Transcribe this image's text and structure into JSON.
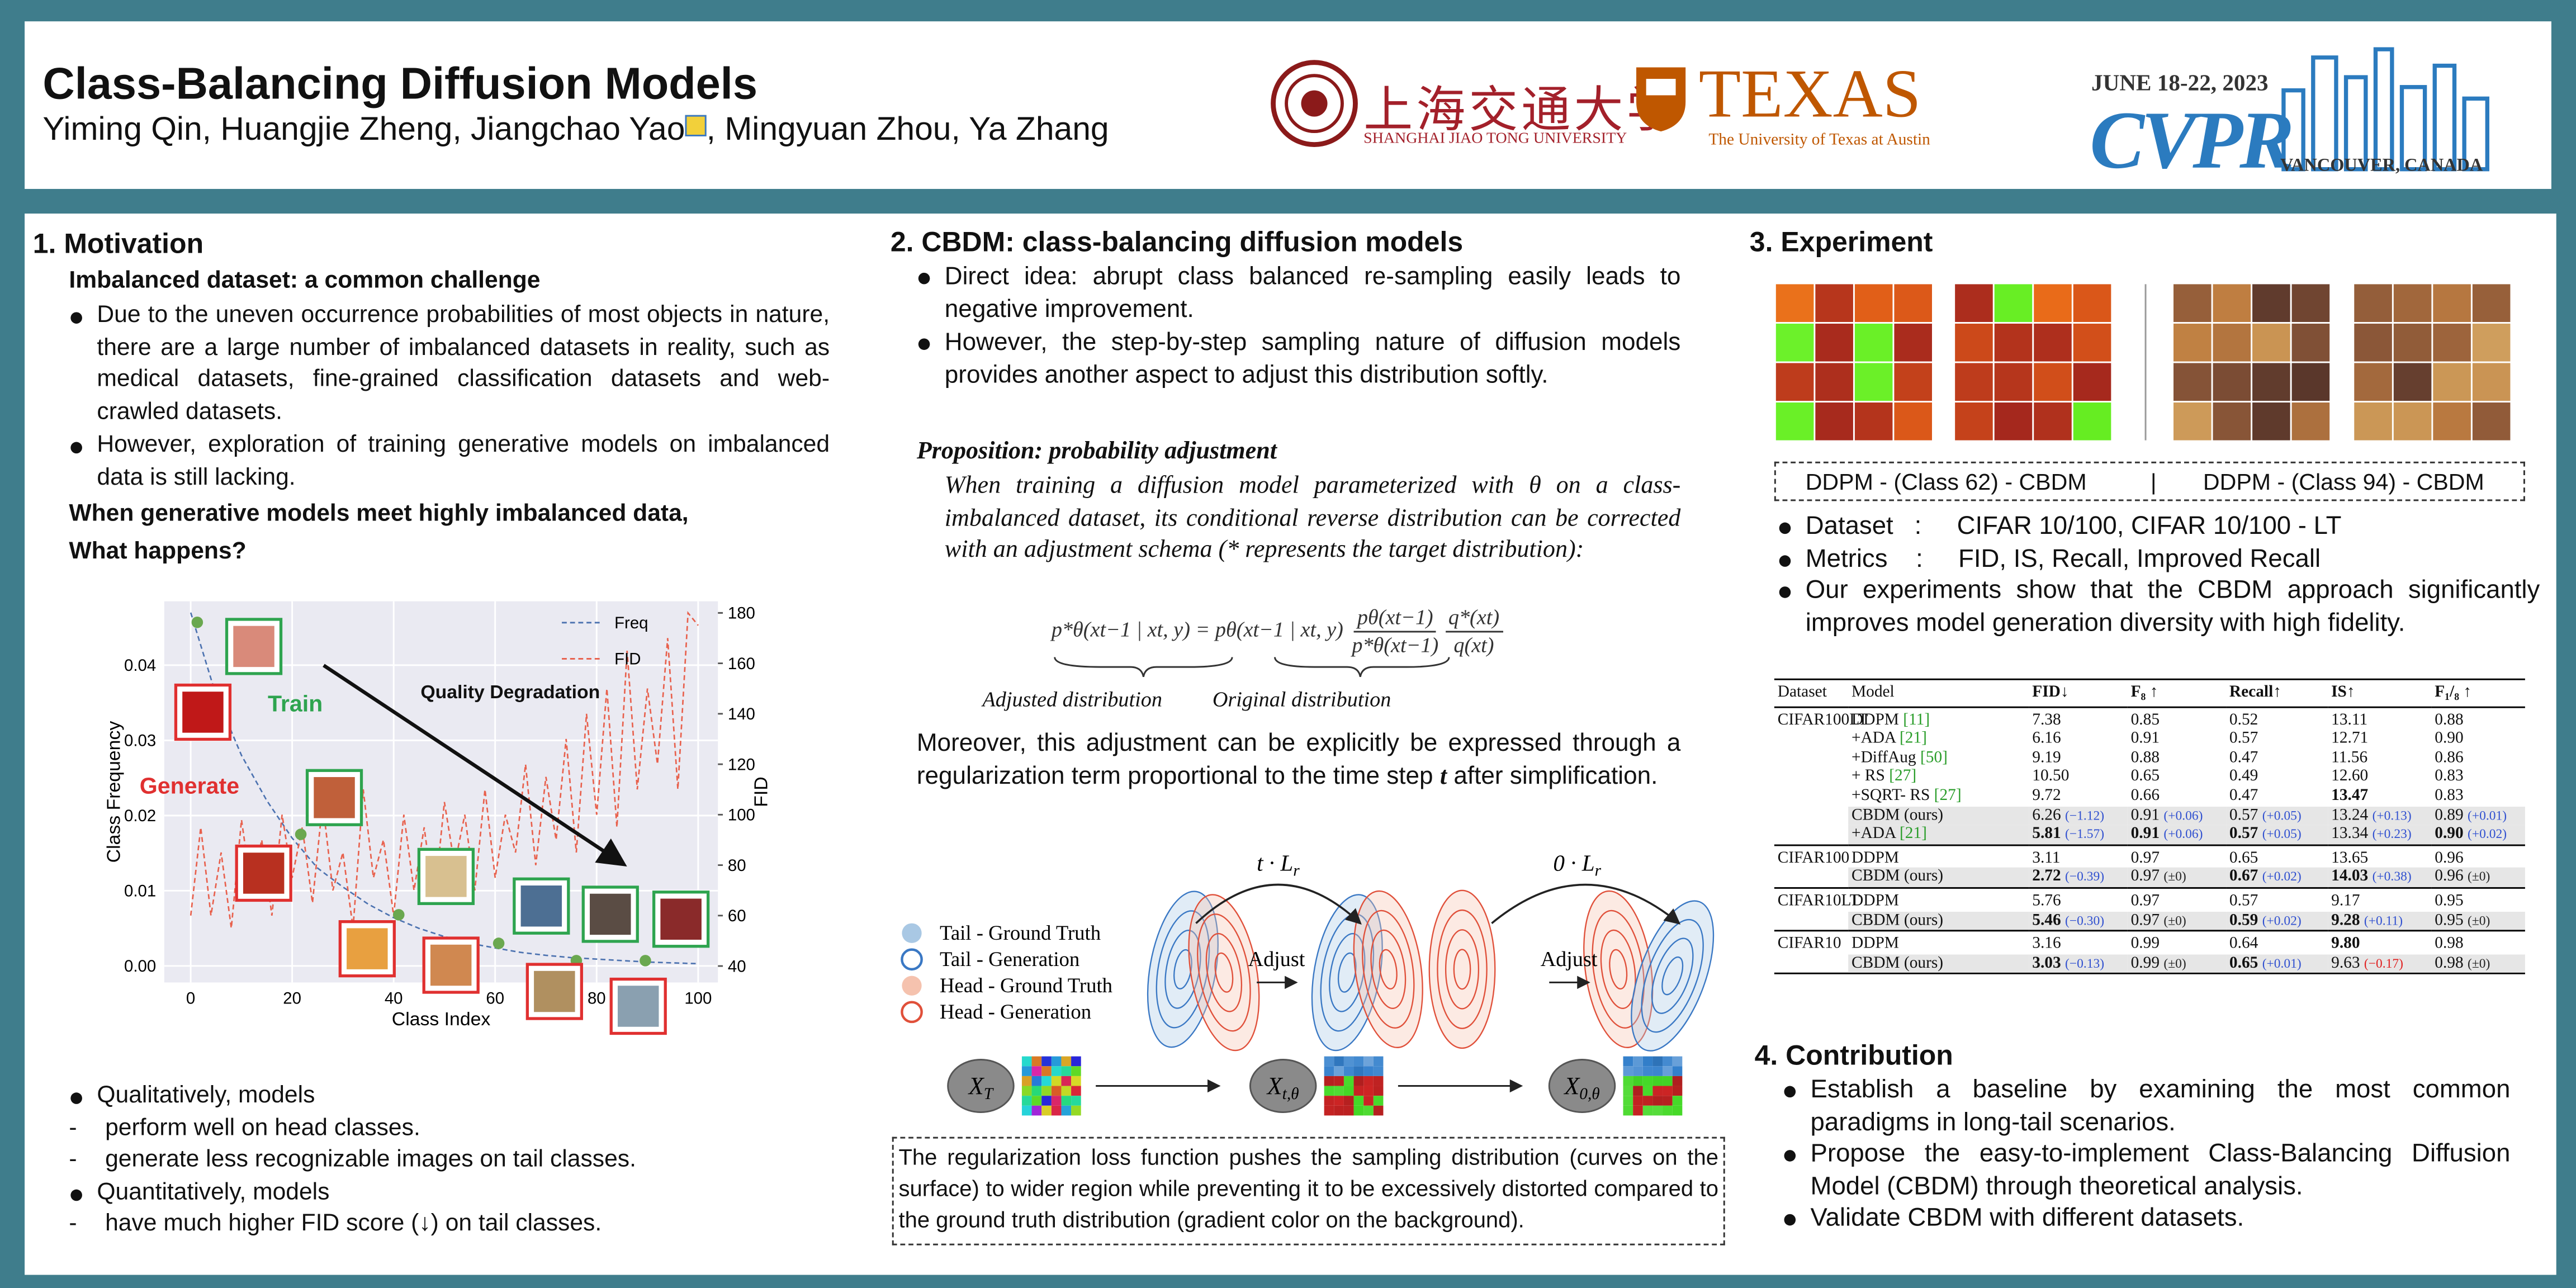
{
  "header": {
    "title": "Class-Balancing Diffusion Models",
    "authors_before_icon": "Yiming Qin, Huangjie Zheng, Jiangchao Yao",
    "authors_after_icon": ", Mingyuan Zhou, Ya Zhang",
    "logos": {
      "sjtu_cn": "上海交通大学",
      "sjtu_en": "SHANGHAI JIAO TONG UNIVERSITY",
      "texas": "TEXAS",
      "texas_sub": "The University of Texas at Austin",
      "cvpr_date": "JUNE 18-22, 2023",
      "cvpr": "CVPR",
      "cvpr_place": "VANCOUVER, CANADA"
    }
  },
  "motivation": {
    "heading": "1.  Motivation",
    "subheading": "Imbalanced dataset: a common challenge",
    "bullets": [
      "Due to the uneven occurrence probabilities of most objects in nature, there are a large number of imbalanced datasets in reality, such as medical datasets,  fine-grained classification datasets and web-crawled datasets.",
      "However, exploration of training generative models on imbalanced data is still  lacking."
    ],
    "question": [
      "When generative models meet  highly imbalanced data,",
      "What happens?"
    ],
    "results": [
      {
        "text": "Qualitatively, models",
        "items": [
          "perform well on head classes.",
          "generate less recognizable images on tail classes."
        ]
      },
      {
        "text": "Quantitatively, models",
        "items": [
          "have much higher FID score (↓) on tail classes."
        ]
      }
    ]
  },
  "chart_data": {
    "type": "line",
    "xlabel": "Class Index",
    "ylabel": "Class Frequency",
    "y2label": "FID",
    "xlim": [
      -5.2,
      103.9
    ],
    "xticks": [
      0,
      20,
      40,
      60,
      80,
      100
    ],
    "ylim": [
      -0.0022,
      0.0485
    ],
    "yticks": [
      {
        "value": 0,
        "label": "0.00"
      },
      {
        "value": 0.01,
        "label": "0.01"
      },
      {
        "value": 0.02,
        "label": "0.02"
      },
      {
        "value": 0.03,
        "label": "0.03"
      },
      {
        "value": 0.04,
        "label": "0.04"
      }
    ],
    "y2lim": [
      33.5,
      184.6
    ],
    "y2ticks": [
      40,
      60,
      80,
      100,
      120,
      140,
      160,
      180
    ],
    "grid": true,
    "legend": "upper right",
    "series": [
      {
        "name": "Freq",
        "color": "#4c72b0",
        "x": [
          0,
          5,
          10,
          15,
          20,
          25,
          30,
          35,
          40,
          45,
          50,
          55,
          60,
          65,
          70,
          75,
          80,
          85,
          90,
          95,
          100
        ],
        "values": [
          0.047,
          0.036,
          0.028,
          0.022,
          0.017,
          0.013,
          0.0105,
          0.0082,
          0.0064,
          0.005,
          0.0039,
          0.003,
          0.0024,
          0.0018,
          0.0014,
          0.0011,
          0.0009,
          0.0007,
          0.0005,
          0.0004,
          0.0003
        ]
      },
      {
        "name": "FID",
        "color": "#e8604c",
        "axis": "y2",
        "x": [
          0,
          2,
          4,
          6,
          8,
          10,
          12,
          14,
          16,
          18,
          20,
          22,
          24,
          26,
          28,
          30,
          32,
          34,
          36,
          38,
          40,
          42,
          44,
          46,
          48,
          50,
          52,
          54,
          56,
          58,
          60,
          62,
          64,
          66,
          68,
          70,
          72,
          74,
          76,
          78,
          80,
          82,
          84,
          86,
          88,
          90,
          92,
          94,
          96,
          98,
          100
        ],
        "values": [
          60,
          95,
          60,
          85,
          55,
          98,
          70,
          90,
          60,
          100,
          75,
          95,
          65,
          105,
          70,
          85,
          55,
          110,
          75,
          90,
          60,
          100,
          70,
          95,
          65,
          105,
          80,
          100,
          70,
          110,
          75,
          100,
          85,
          120,
          80,
          115,
          90,
          130,
          85,
          140,
          100,
          150,
          95,
          165,
          110,
          150,
          120,
          170,
          110,
          180,
          175
        ]
      }
    ],
    "highlighted_points": {
      "color": "#6aa84f",
      "x": [
        1.3,
        21.7,
        41,
        60.7,
        76,
        89.6
      ],
      "values": [
        0.0457,
        0.0175,
        0.0068,
        0.003,
        0.0007,
        0.0007
      ]
    },
    "annotations": [
      {
        "text": "Train",
        "color": "#2ea44f"
      },
      {
        "text": "Generate",
        "color": "#e03030"
      },
      {
        "text": "Quality Degradation",
        "color": "#111"
      }
    ]
  },
  "method": {
    "heading": "2. CBDM: class-balancing diffusion models",
    "bullets": [
      "Direct idea: abrupt class balanced re-sampling easily leads to negative improvement.",
      "However, the step-by-step sampling nature of diffusion  models provides another aspect to adjust this distribution softly."
    ],
    "proposition_title": "Proposition: probability adjustment",
    "proposition": "When training a diffusion model parameterized with θ on a class-imbalanced dataset, its conditional reverse distribution  can be corrected with an adjustment schema (* represents the target distribution):",
    "formula": {
      "lhs": "p*θ(xt−1 | xt, y)",
      "eq": "=",
      "rhs": "pθ(xt−1 | xt, y)",
      "frac1_num": "pθ(xt−1)",
      "frac1_den": "p*θ(xt−1)",
      "frac2_num": "q*(xt)",
      "frac2_den": "q(xt)",
      "lhs_label": "Adjusted distribution",
      "rhs_label": "Original distribution"
    },
    "paragraph": [
      "Moreover, this adjustment can be explicitly be expressed through a regularization term proportional to the time step ",
      "t",
      " after simplification."
    ],
    "diagram": {
      "legend": [
        "Tail - Ground Truth",
        "Tail - Generation",
        "Head - Ground Truth",
        "Head - Generation"
      ],
      "loss_labels": [
        {
          "prefix": "t · L",
          "sub": "r"
        },
        {
          "prefix": "0 · L",
          "sub": "r"
        }
      ],
      "adjust": [
        "Adjust",
        "Adjust"
      ],
      "nodes": [
        {
          "base": "X",
          "sub": "T"
        },
        {
          "base": "X",
          "sub": "t,θ"
        },
        {
          "base": "X",
          "sub": "0,θ"
        }
      ]
    },
    "note": "The regularization loss function pushes the sampling distribution (curves on the surface) to wider region while preventing it to be excessively distorted compared to the ground truth distribution (gradient color on the background)."
  },
  "experiment": {
    "heading": "3. Experiment",
    "captions": [
      "DDPM - (Class 62) - CBDM",
      "|",
      "DDPM - (Class 94) - CBDM"
    ],
    "bullets": [
      "Dataset   :     CIFAR 10/100, CIFAR 10/100 - LT",
      "Metrics    :     FID, IS, Recall, Improved Recall",
      "Our experiments show that the CBDM approach significantly improves model generation diversity with high fidelity."
    ],
    "table": {
      "header": [
        "Dataset",
        "Model",
        "FID↓",
        "F₈ ↑",
        "Recall↑",
        "IS↑",
        "F₁/₈ ↑"
      ],
      "groups": [
        {
          "dataset": "CIFAR100LT",
          "rows": [
            {
              "model": "DDPM",
              "ref": "[11]",
              "values": [
                "7.38",
                "0.85",
                "0.52",
                "13.11",
                "0.88"
              ]
            },
            {
              "model": "+ADA",
              "ref": "[21]",
              "values": [
                "6.16",
                "0.91",
                "0.57",
                "12.71",
                "0.90"
              ]
            },
            {
              "model": "+DiffAug",
              "ref": "[50]",
              "values": [
                "9.19",
                "0.88",
                "0.47",
                "11.56",
                "0.86"
              ]
            },
            {
              "model": "+ RS",
              "ref": "[27]",
              "values": [
                "10.50",
                "0.65",
                "0.49",
                "12.60",
                "0.83"
              ]
            },
            {
              "model": "+SQRT- RS",
              "ref": "[27]",
              "values": [
                "9.72",
                "0.66",
                "0.47",
                "13.47",
                "0.83"
              ],
              "bold": [
                3
              ]
            },
            {
              "model": "CBDM (ours)",
              "values": [
                "6.26",
                "0.91",
                "0.57",
                "13.24",
                "0.89"
              ],
              "deltas": [
                "(−1.12)",
                "(+0.06)",
                "(+0.05)",
                "(+0.13)",
                "(+0.01)"
              ],
              "delta_colors": [
                "#3050d0",
                "#3050d0",
                "#3050d0",
                "#3050d0",
                "#3050d0"
              ],
              "highlight": true
            },
            {
              "model": "+ADA",
              "ref": "[21]",
              "values": [
                "5.81",
                "0.91",
                "0.57",
                "13.34",
                "0.90"
              ],
              "deltas": [
                "(−1.57)",
                "(+0.06)",
                "(+0.05)",
                "(+0.23)",
                "(+0.02)"
              ],
              "delta_colors": [
                "#3050d0",
                "#3050d0",
                "#3050d0",
                "#3050d0",
                "#3050d0"
              ],
              "bold": [
                0,
                1,
                2,
                4
              ],
              "highlight": true
            }
          ]
        },
        {
          "dataset": "CIFAR100",
          "rows": [
            {
              "model": "DDPM",
              "values": [
                "3.11",
                "0.97",
                "0.65",
                "13.65",
                "0.96"
              ]
            },
            {
              "model": "CBDM (ours)",
              "values": [
                "2.72",
                "0.97",
                "0.67",
                "14.03",
                "0.96"
              ],
              "deltas": [
                "(−0.39)",
                "(±0)",
                "(+0.02)",
                "(+0.38)",
                "(±0)"
              ],
              "delta_colors": [
                "#3050d0",
                "#222",
                "#3050d0",
                "#3050d0",
                "#222"
              ],
              "bold": [
                0,
                2,
                3
              ],
              "highlight": true
            }
          ]
        },
        {
          "dataset": "CIFAR10LT",
          "rows": [
            {
              "model": "DDPM",
              "values": [
                "5.76",
                "0.97",
                "0.57",
                "9.17",
                "0.95"
              ]
            },
            {
              "model": "CBDM (ours)",
              "values": [
                "5.46",
                "0.97",
                "0.59",
                "9.28",
                "0.95"
              ],
              "deltas": [
                "(−0.30)",
                "(±0)",
                "(+0.02)",
                "(+0.11)",
                "(±0)"
              ],
              "delta_colors": [
                "#3050d0",
                "#222",
                "#3050d0",
                "#3050d0",
                "#222"
              ],
              "bold": [
                0,
                2,
                3
              ],
              "highlight": true
            }
          ]
        },
        {
          "dataset": "CIFAR10",
          "rows": [
            {
              "model": "DDPM",
              "values": [
                "3.16",
                "0.99",
                "0.64",
                "9.80",
                "0.98"
              ],
              "bold": [
                3
              ]
            },
            {
              "model": "CBDM (ours)",
              "values": [
                "3.03",
                "0.99",
                "0.65",
                "9.63",
                "0.98"
              ],
              "deltas": [
                "(−0.13)",
                "(±0)",
                "(+0.01)",
                "(−0.17)",
                "(±0)"
              ],
              "delta_colors": [
                "#3050d0",
                "#222",
                "#3050d0",
                "#e02020",
                "#222"
              ],
              "bold": [
                0,
                2
              ],
              "highlight": true
            }
          ]
        }
      ]
    }
  },
  "contribution": {
    "heading": "4. Contribution",
    "bullets": [
      "Establish a baseline by examining the most common paradigms in long-tail scenarios.",
      "Propose the easy-to-implement  Class-Balancing Diffusion Model (CBDM) through theoretical analysis.",
      "Validate CBDM with different datasets."
    ]
  }
}
